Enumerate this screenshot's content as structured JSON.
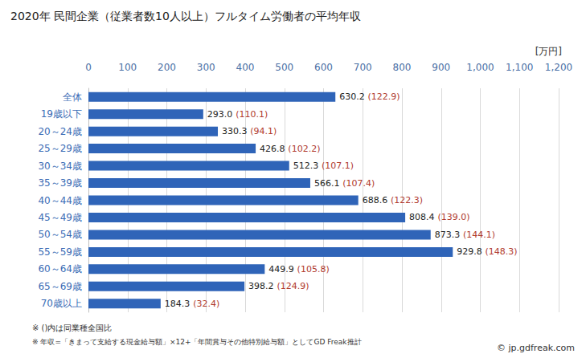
{
  "chart_data": {
    "type": "bar",
    "orientation": "horizontal",
    "title": "2020年 民間企業（従業者数10人以上）フルタイム労働者の平均年収",
    "xlabel": "[万円]",
    "categories": [
      "全体",
      "19歳以下",
      "20～24歳",
      "25～29歳",
      "30～34歳",
      "35～39歳",
      "40～44歳",
      "45～49歳",
      "50～54歳",
      "55～59歳",
      "60～64歳",
      "65～69歳",
      "70歳以上"
    ],
    "values": [
      630.2,
      293.0,
      330.3,
      426.8,
      512.3,
      566.1,
      688.6,
      808.4,
      873.3,
      929.8,
      449.9,
      398.2,
      184.3
    ],
    "value_labels": [
      "630.2",
      "293.0",
      "330.3",
      "426.8",
      "512.3",
      "566.1",
      "688.6",
      "808.4",
      "873.3",
      "929.8",
      "449.9",
      "398.2",
      "184.3"
    ],
    "ratio_labels": [
      "(122.9)",
      "(110.1)",
      "(94.1)",
      "(102.2)",
      "(107.1)",
      "(107.4)",
      "(122.3)",
      "(139.0)",
      "(144.1)",
      "(148.3)",
      "(105.8)",
      "(124.9)",
      "(32.4)"
    ],
    "color": "#2f64b8",
    "xlim": [
      0,
      1200
    ],
    "xticks": [
      0,
      100,
      200,
      300,
      400,
      500,
      600,
      700,
      800,
      900,
      1000,
      1100,
      1200
    ],
    "grid": true,
    "data_labels": true,
    "notes": [
      "※ ()内は同業種全国比",
      "※ 年収=「きまって支給する現金給与額」×12+「年間賞与その他特別給与額」としてGD Freak推計"
    ],
    "source": "© jp.gdfreak.com"
  }
}
